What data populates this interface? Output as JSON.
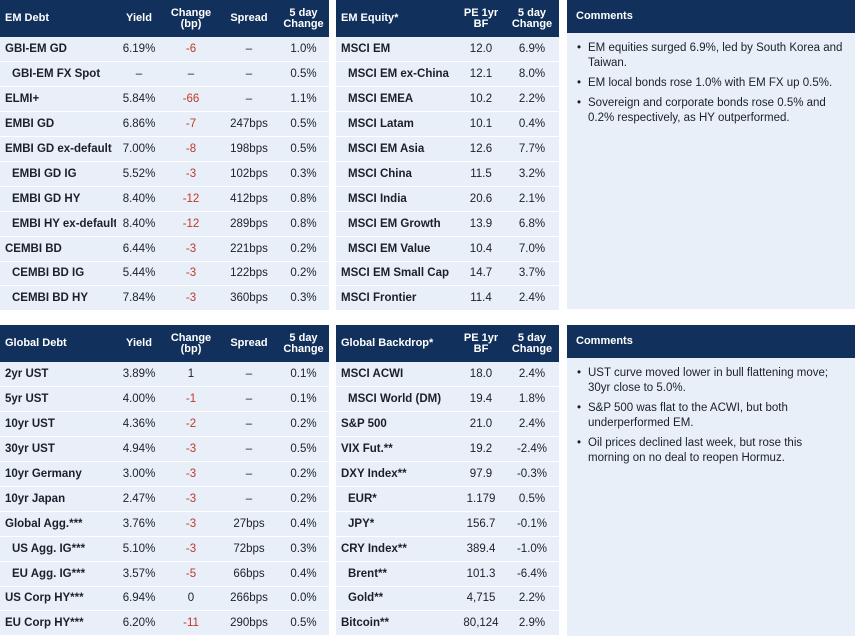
{
  "em_debt": {
    "headers": [
      "EM Debt",
      "Yield",
      "Change (bp)",
      "Spread",
      "5 day Change"
    ],
    "rows": [
      {
        "name": "GBI-EM GD",
        "yield": "6.19%",
        "change": "-6",
        "spread": "–",
        "five_day": "1.0%",
        "indent": false
      },
      {
        "name": "GBI-EM FX Spot",
        "yield": "–",
        "change": "–",
        "spread": "–",
        "five_day": "0.5%",
        "indent": true
      },
      {
        "name": "ELMI+",
        "yield": "5.84%",
        "change": "-66",
        "spread": "–",
        "five_day": "1.1%",
        "indent": false
      },
      {
        "name": "EMBI GD",
        "yield": "6.86%",
        "change": "-7",
        "spread": "247bps",
        "five_day": "0.5%",
        "indent": false
      },
      {
        "name": "EMBI GD ex-default",
        "yield": "7.00%",
        "change": "-8",
        "spread": "198bps",
        "five_day": "0.5%",
        "indent": false
      },
      {
        "name": "EMBI GD IG",
        "yield": "5.52%",
        "change": "-3",
        "spread": "102bps",
        "five_day": "0.3%",
        "indent": true
      },
      {
        "name": "EMBI GD HY",
        "yield": "8.40%",
        "change": "-12",
        "spread": "412bps",
        "five_day": "0.8%",
        "indent": true
      },
      {
        "name": "EMBI HY ex-default",
        "yield": "8.40%",
        "change": "-12",
        "spread": "289bps",
        "five_day": "0.8%",
        "indent": true
      },
      {
        "name": "CEMBI BD",
        "yield": "6.44%",
        "change": "-3",
        "spread": "221bps",
        "five_day": "0.2%",
        "indent": false
      },
      {
        "name": "CEMBI BD IG",
        "yield": "5.44%",
        "change": "-3",
        "spread": "122bps",
        "five_day": "0.2%",
        "indent": true
      },
      {
        "name": "CEMBI BD HY",
        "yield": "7.84%",
        "change": "-3",
        "spread": "360bps",
        "five_day": "0.3%",
        "indent": true
      }
    ]
  },
  "em_equity": {
    "headers": [
      "EM Equity*",
      "PE 1yr BF",
      "5 day Change"
    ],
    "rows": [
      {
        "name": "MSCI EM",
        "pe": "12.0",
        "five_day": "6.9%",
        "indent": false
      },
      {
        "name": "MSCI EM ex-China",
        "pe": "12.1",
        "five_day": "8.0%",
        "indent": true
      },
      {
        "name": "MSCI EMEA",
        "pe": "10.2",
        "five_day": "2.2%",
        "indent": true
      },
      {
        "name": "MSCI Latam",
        "pe": "10.1",
        "five_day": "0.4%",
        "indent": true
      },
      {
        "name": "MSCI EM Asia",
        "pe": "12.6",
        "five_day": "7.7%",
        "indent": true
      },
      {
        "name": "MSCI China",
        "pe": "11.5",
        "five_day": "3.2%",
        "indent": true
      },
      {
        "name": "MSCI India",
        "pe": "20.6",
        "five_day": "2.1%",
        "indent": true
      },
      {
        "name": "MSCI EM Growth",
        "pe": "13.9",
        "five_day": "6.8%",
        "indent": true
      },
      {
        "name": "MSCI EM Value",
        "pe": "10.4",
        "five_day": "7.0%",
        "indent": true
      },
      {
        "name": "MSCI EM Small Cap",
        "pe": "14.7",
        "five_day": "3.7%",
        "indent": false
      },
      {
        "name": "MSCI Frontier",
        "pe": "11.4",
        "five_day": "2.4%",
        "indent": false
      }
    ]
  },
  "comments_top": {
    "title": "Comments",
    "items": [
      "EM equities surged 6.9%, led by South Korea and Taiwan.",
      "EM local bonds rose 1.0% with EM FX up 0.5%.",
      "Sovereign and corporate bonds rose 0.5% and 0.2% respectively, as HY outperformed."
    ]
  },
  "global_debt": {
    "headers": [
      "Global Debt",
      "Yield",
      "Change (bp)",
      "Spread",
      "5 day Change"
    ],
    "rows": [
      {
        "name": "2yr UST",
        "yield": "3.89%",
        "change": "1",
        "spread": "–",
        "five_day": "0.1%",
        "indent": false
      },
      {
        "name": "5yr UST",
        "yield": "4.00%",
        "change": "-1",
        "spread": "–",
        "five_day": "0.1%",
        "indent": false
      },
      {
        "name": "10yr UST",
        "yield": "4.36%",
        "change": "-2",
        "spread": "–",
        "five_day": "0.2%",
        "indent": false
      },
      {
        "name": "30yr UST",
        "yield": "4.94%",
        "change": "-3",
        "spread": "–",
        "five_day": "0.5%",
        "indent": false
      },
      {
        "name": "10yr Germany",
        "yield": "3.00%",
        "change": "-3",
        "spread": "–",
        "five_day": "0.2%",
        "indent": false
      },
      {
        "name": "10yr Japan",
        "yield": "2.47%",
        "change": "-3",
        "spread": "–",
        "five_day": "0.2%",
        "indent": false
      },
      {
        "name": "Global Agg.***",
        "yield": "3.76%",
        "change": "-3",
        "spread": "27bps",
        "five_day": "0.4%",
        "indent": false
      },
      {
        "name": "US Agg. IG***",
        "yield": "5.10%",
        "change": "-3",
        "spread": "72bps",
        "five_day": "0.3%",
        "indent": true
      },
      {
        "name": "EU Agg. IG***",
        "yield": "3.57%",
        "change": "-5",
        "spread": "66bps",
        "five_day": "0.4%",
        "indent": true
      },
      {
        "name": "US Corp HY***",
        "yield": "6.94%",
        "change": "0",
        "spread": "266bps",
        "five_day": "0.0%",
        "indent": false
      },
      {
        "name": "EU Corp HY***",
        "yield": "6.20%",
        "change": "-11",
        "spread": "290bps",
        "five_day": "0.5%",
        "indent": false
      }
    ]
  },
  "global_backdrop": {
    "headers": [
      "Global Backdrop*",
      "PE 1yr BF",
      "5 day Change"
    ],
    "rows": [
      {
        "name": "MSCI ACWI",
        "pe": "18.0",
        "five_day": "2.4%",
        "indent": false
      },
      {
        "name": "MSCI World (DM)",
        "pe": "19.4",
        "five_day": "1.8%",
        "indent": true
      },
      {
        "name": "S&P 500",
        "pe": "21.0",
        "five_day": "2.4%",
        "indent": false
      },
      {
        "name": "VIX Fut.**",
        "pe": "19.2",
        "five_day": "-2.4%",
        "indent": false
      },
      {
        "name": "DXY Index**",
        "pe": "97.9",
        "five_day": "-0.3%",
        "indent": false
      },
      {
        "name": "EUR*",
        "pe": "1.179",
        "five_day": "0.5%",
        "indent": true
      },
      {
        "name": "JPY*",
        "pe": "156.7",
        "five_day": "-0.1%",
        "indent": true
      },
      {
        "name": "CRY Index**",
        "pe": "389.4",
        "five_day": "-1.0%",
        "indent": false
      },
      {
        "name": "Brent**",
        "pe": "101.3",
        "five_day": "-6.4%",
        "indent": true
      },
      {
        "name": "Gold**",
        "pe": "4,715",
        "five_day": "2.2%",
        "indent": true
      },
      {
        "name": "Bitcoin**",
        "pe": "80,124",
        "five_day": "2.9%",
        "indent": false
      }
    ]
  },
  "comments_bottom": {
    "title": "Comments",
    "items": [
      "UST curve moved lower in bull flattening move; 30yr close to 5.0%.",
      "S&P 500 was flat to the ACWI, but both underperformed EM.",
      "Oil prices declined last week, but rose this morning on no deal to reopen Hormuz."
    ]
  }
}
